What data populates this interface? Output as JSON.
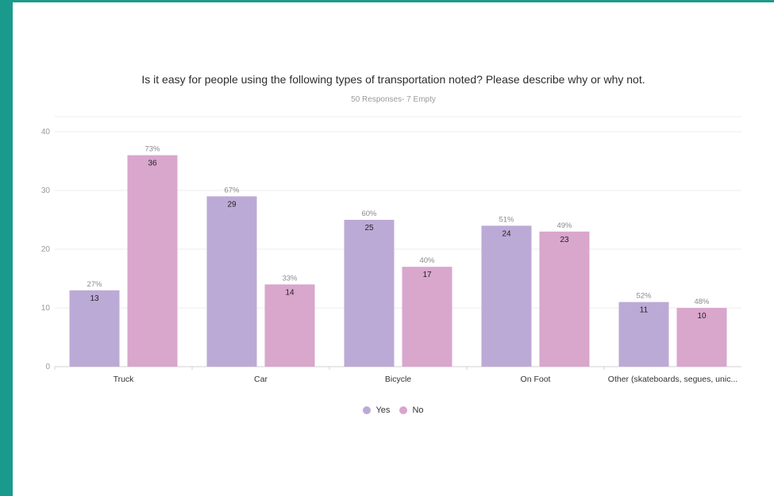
{
  "chart_data": {
    "type": "bar",
    "title": "Is it easy for people using the following types of transportation noted? Please describe why or why not.",
    "subtitle": "50 Responses- 7 Empty",
    "categories": [
      "Truck",
      "Car",
      "Bicycle",
      "On Foot",
      "Other (skateboards, segues, unic..."
    ],
    "series": [
      {
        "name": "Yes",
        "color": "#bcaad6",
        "values": [
          13,
          29,
          25,
          24,
          11
        ],
        "percents": [
          "27%",
          "67%",
          "60%",
          "51%",
          "52%"
        ]
      },
      {
        "name": "No",
        "color": "#d9a6cc",
        "values": [
          36,
          14,
          17,
          23,
          10
        ],
        "percents": [
          "73%",
          "33%",
          "40%",
          "49%",
          "48%"
        ]
      }
    ],
    "yticks": [
      0,
      10,
      20,
      30,
      40
    ],
    "ylim": [
      0,
      40
    ],
    "grid": true,
    "legend_position": "bottom-center"
  }
}
